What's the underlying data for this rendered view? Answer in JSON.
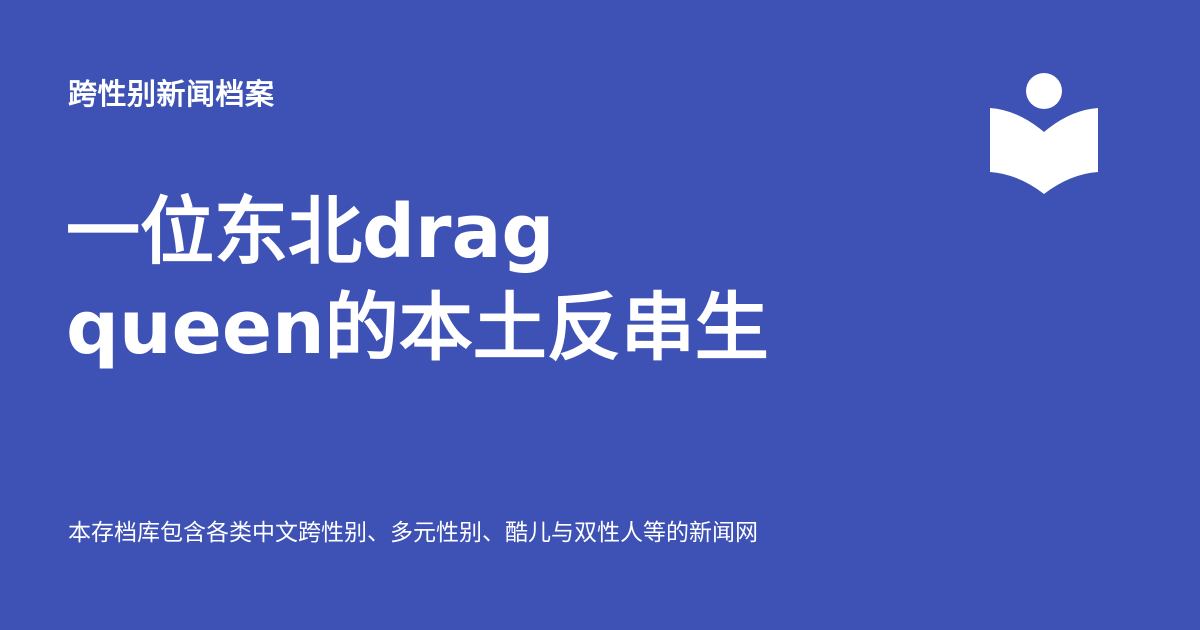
{
  "site": {
    "name": "跨性别新闻档案"
  },
  "article": {
    "title_line1": "一位东北drag",
    "title_line2": "queen的本土反串生",
    "description": "本存档库包含各类中文跨性别、多元性别、酷儿与双性人等的新闻网"
  },
  "logo": {
    "icon": "reader-book-icon",
    "color": "#ffffff"
  },
  "theme": {
    "background": "#3e51b5",
    "text": "#ffffff"
  }
}
